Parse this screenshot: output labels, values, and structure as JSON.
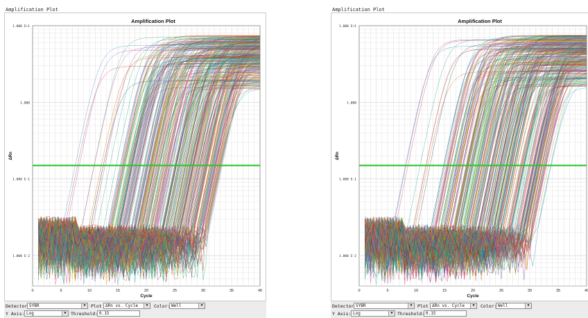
{
  "panels": [
    {
      "id": "left",
      "window_title": "Amplification Plot",
      "detector_label": "Detector:",
      "detector_value": "SYBR",
      "plot_label": "Plot",
      "plot_value": "ΔRn vs. Cycle",
      "color_label": "Color:",
      "color_value": "Well",
      "yaxis_label": "Y Axis:",
      "yaxis_value": "Log",
      "threshold_label": "Threshold:",
      "threshold_value": "0.15",
      "seed": 7
    },
    {
      "id": "right",
      "window_title": "Amplification Plot",
      "detector_label": "Detector:",
      "detector_value": "SYBR",
      "plot_label": "Plot",
      "plot_value": "ΔRn vs. Cycle",
      "color_label": "Color:",
      "color_value": "Well",
      "yaxis_label": "Y Axis:",
      "yaxis_value": "Log",
      "threshold_label": "Threshold:",
      "threshold_value": "0.15",
      "seed": 19
    }
  ],
  "chart_data": {
    "type": "line",
    "title": "Amplification Plot",
    "xlabel": "Cycle",
    "ylabel": "ΔRn",
    "x_ticks": [
      "0",
      "5",
      "10",
      "15",
      "20",
      "25",
      "30",
      "35",
      "40"
    ],
    "y_ticks": [
      "1.000 E+1",
      "1.000",
      "1.000 E-1",
      "1.000 E-2"
    ],
    "xlim": [
      0,
      40
    ],
    "ylim": [
      0.004,
      10
    ],
    "y_scale": "log",
    "grid": true,
    "threshold": 0.15,
    "threshold_color": "#2ec32e",
    "curve_count_estimate": 300,
    "curve_palette": [
      "#c0392b",
      "#2e86c1",
      "#8e44ad",
      "#27ae60",
      "#f39c12",
      "#d35400",
      "#16a085",
      "#e84393",
      "#2c3e50",
      "#7d3c98",
      "#b7950b",
      "#1abc9c"
    ]
  }
}
